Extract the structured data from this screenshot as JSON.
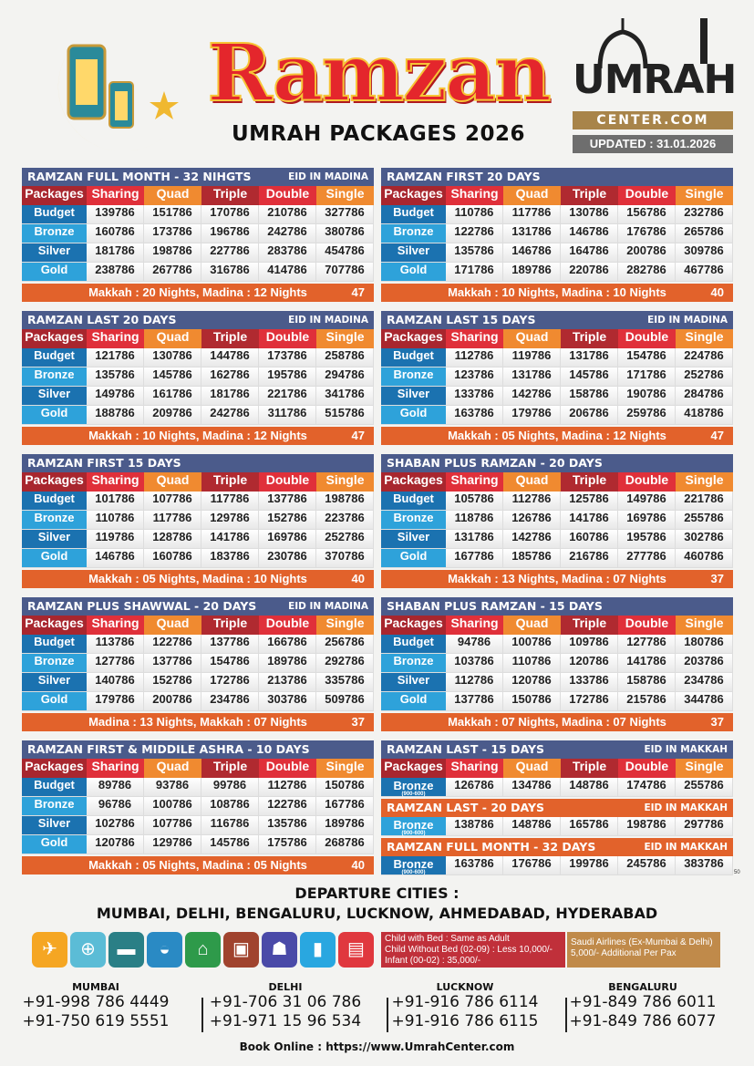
{
  "header": {
    "title": "Ramzan",
    "subtitle": "UMRAH PACKAGES 2026",
    "logo_text": "UMRAH",
    "logo_sub": "CENTER.COM",
    "updated": "UPDATED : 31.01.2026"
  },
  "columns": [
    "Packages",
    "Sharing",
    "Quad",
    "Triple",
    "Double",
    "Single"
  ],
  "header_colors": [
    "#a8262e",
    "#e0303a",
    "#f08a30",
    "#b02a30",
    "#e0303a",
    "#f08a30"
  ],
  "package_colors": {
    "Budget": "#1b72b0",
    "Bronze": "#2ea2da",
    "Silver": "#1b72b0",
    "Gold": "#2ea2da"
  },
  "tables": [
    {
      "title": "RAMZAN FULL MONTH - 32 NIHGTS",
      "eid": "EID IN MADINA",
      "rows": [
        [
          "Budget",
          "139786",
          "151786",
          "170786",
          "210786",
          "327786"
        ],
        [
          "Bronze",
          "160786",
          "173786",
          "196786",
          "242786",
          "380786"
        ],
        [
          "Silver",
          "181786",
          "198786",
          "227786",
          "283786",
          "454786"
        ],
        [
          "Gold",
          "238786",
          "267786",
          "316786",
          "414786",
          "707786"
        ]
      ],
      "footer": "Makkah : 20 Nights, Madina : 12 Nights",
      "count": "47"
    },
    {
      "title": "RAMZAN FIRST 20 DAYS",
      "eid": "",
      "rows": [
        [
          "Budget",
          "110786",
          "117786",
          "130786",
          "156786",
          "232786"
        ],
        [
          "Bronze",
          "122786",
          "131786",
          "146786",
          "176786",
          "265786"
        ],
        [
          "Silver",
          "135786",
          "146786",
          "164786",
          "200786",
          "309786"
        ],
        [
          "Gold",
          "171786",
          "189786",
          "220786",
          "282786",
          "467786"
        ]
      ],
      "footer": "Makkah : 10 Nights, Madina : 10 Nights",
      "count": "40"
    },
    {
      "title": "RAMZAN LAST 20 DAYS",
      "eid": "EID IN MADINA",
      "rows": [
        [
          "Budget",
          "121786",
          "130786",
          "144786",
          "173786",
          "258786"
        ],
        [
          "Bronze",
          "135786",
          "145786",
          "162786",
          "195786",
          "294786"
        ],
        [
          "Silver",
          "149786",
          "161786",
          "181786",
          "221786",
          "341786"
        ],
        [
          "Gold",
          "188786",
          "209786",
          "242786",
          "311786",
          "515786"
        ]
      ],
      "footer": "Makkah : 10 Nights, Madina : 12 Nights",
      "count": "47"
    },
    {
      "title": "RAMZAN LAST 15 DAYS",
      "eid": "EID IN MADINA",
      "rows": [
        [
          "Budget",
          "112786",
          "119786",
          "131786",
          "154786",
          "224786"
        ],
        [
          "Bronze",
          "123786",
          "131786",
          "145786",
          "171786",
          "252786"
        ],
        [
          "Silver",
          "133786",
          "142786",
          "158786",
          "190786",
          "284786"
        ],
        [
          "Gold",
          "163786",
          "179786",
          "206786",
          "259786",
          "418786"
        ]
      ],
      "footer": "Makkah : 05 Nights, Madina : 12 Nights",
      "count": "47"
    },
    {
      "title": "RAMZAN FIRST 15 DAYS",
      "eid": "",
      "rows": [
        [
          "Budget",
          "101786",
          "107786",
          "117786",
          "137786",
          "198786"
        ],
        [
          "Bronze",
          "110786",
          "117786",
          "129786",
          "152786",
          "223786"
        ],
        [
          "Silver",
          "119786",
          "128786",
          "141786",
          "169786",
          "252786"
        ],
        [
          "Gold",
          "146786",
          "160786",
          "183786",
          "230786",
          "370786"
        ]
      ],
      "footer": "Makkah : 05 Nights, Madina : 10 Nights",
      "count": "40"
    },
    {
      "title": "SHABAN PLUS RAMZAN - 20 DAYS",
      "eid": "",
      "rows": [
        [
          "Budget",
          "105786",
          "112786",
          "125786",
          "149786",
          "221786"
        ],
        [
          "Bronze",
          "118786",
          "126786",
          "141786",
          "169786",
          "255786"
        ],
        [
          "Silver",
          "131786",
          "142786",
          "160786",
          "195786",
          "302786"
        ],
        [
          "Gold",
          "167786",
          "185786",
          "216786",
          "277786",
          "460786"
        ]
      ],
      "footer": "Makkah : 13 Nights, Madina : 07 Nights",
      "count": "37"
    },
    {
      "title": "RAMZAN PLUS SHAWWAL - 20 DAYS",
      "eid": "EID IN MADINA",
      "rows": [
        [
          "Budget",
          "113786",
          "122786",
          "137786",
          "166786",
          "256786"
        ],
        [
          "Bronze",
          "127786",
          "137786",
          "154786",
          "189786",
          "292786"
        ],
        [
          "Silver",
          "140786",
          "152786",
          "172786",
          "213786",
          "335786"
        ],
        [
          "Gold",
          "179786",
          "200786",
          "234786",
          "303786",
          "509786"
        ]
      ],
      "footer": "Madina : 13 Nights, Makkah : 07 Nights",
      "count": "37"
    },
    {
      "title": "SHABAN PLUS RAMZAN - 15 DAYS",
      "eid": "",
      "rows": [
        [
          "Budget",
          "94786",
          "100786",
          "109786",
          "127786",
          "180786"
        ],
        [
          "Bronze",
          "103786",
          "110786",
          "120786",
          "141786",
          "203786"
        ],
        [
          "Silver",
          "112786",
          "120786",
          "133786",
          "158786",
          "234786"
        ],
        [
          "Gold",
          "137786",
          "150786",
          "172786",
          "215786",
          "344786"
        ]
      ],
      "footer": "Makkah : 07 Nights, Madina : 07 Nights",
      "count": "37"
    },
    {
      "title": "RAMZAN FIRST & MIDDILE ASHRA - 10 DAYS",
      "eid": "",
      "rows": [
        [
          "Budget",
          "89786",
          "93786",
          "99786",
          "112786",
          "150786"
        ],
        [
          "Bronze",
          "96786",
          "100786",
          "108786",
          "122786",
          "167786"
        ],
        [
          "Silver",
          "102786",
          "107786",
          "116786",
          "135786",
          "189786"
        ],
        [
          "Gold",
          "120786",
          "129786",
          "145786",
          "175786",
          "268786"
        ]
      ],
      "footer": "Makkah : 05 Nights, Madina : 05 Nights",
      "count": "40"
    }
  ],
  "makkah_tables": [
    {
      "title": "RAMZAN LAST - 15 DAYS",
      "eid": "EID IN MAKKAH",
      "row": [
        "Bronze",
        "126786",
        "134786",
        "148786",
        "174786",
        "255786"
      ],
      "note": "(900-600)"
    },
    {
      "title": "RAMZAN LAST - 20 DAYS",
      "eid": "EID IN MAKKAH",
      "row": [
        "Bronze",
        "138786",
        "148786",
        "165786",
        "198786",
        "297786"
      ],
      "note": "(900-600)"
    },
    {
      "title": "RAMZAN FULL MONTH - 32 DAYS",
      "eid": "EID IN MAKKAH",
      "row": [
        "Bronze",
        "163786",
        "176786",
        "199786",
        "245786",
        "383786"
      ],
      "note": "(900-600)"
    }
  ],
  "makkah_count": "50",
  "departure": {
    "label": "DEPARTURE CITIES :",
    "cities": "MUMBAI, DELHI, BENGALURU, LUCKNOW, AHMEDABAD, HYDERABAD"
  },
  "services": [
    {
      "icon": "airplane-icon",
      "glyph": "✈",
      "color": "#f5a623"
    },
    {
      "icon": "passport-visa-icon",
      "glyph": "⊕",
      "color": "#5bbcd6"
    },
    {
      "icon": "hotel-bed-icon",
      "glyph": "▬",
      "color": "#2a7f86"
    },
    {
      "icon": "food-cloche-icon",
      "glyph": "◒",
      "color": "#2a8ac4"
    },
    {
      "icon": "mosque-ziyarat-icon",
      "glyph": "⌂",
      "color": "#2e9a4a"
    },
    {
      "icon": "bus-icon",
      "glyph": "▣",
      "color": "#a0432e"
    },
    {
      "icon": "laundry-icon",
      "glyph": "☗",
      "color": "#4a4aa8"
    },
    {
      "icon": "zamzam-water-icon",
      "glyph": "▮",
      "color": "#29a7e0"
    },
    {
      "icon": "sim-card-icon",
      "glyph": "▤",
      "color": "#e0383e"
    }
  ],
  "child_info": [
    "Child with Bed : Same as Adult",
    "Child Without Bed (02-09) : Less 10,000/-",
    "Infant (00-02) : 35,000/-"
  ],
  "airline_info": [
    "Saudi Airlines (Ex-Mumbai & Delhi)",
    "5,000/- Additional Per Pax"
  ],
  "contacts": [
    {
      "city": "MUMBAI",
      "phones": [
        "+91-998 786 4449",
        "+91-750  619  5551"
      ]
    },
    {
      "city": "DELHI",
      "phones": [
        "+91-706 31 06 786",
        "+91-971 15 96 534"
      ]
    },
    {
      "city": "LUCKNOW",
      "phones": [
        "+91-916 786 6114",
        "+91-916 786 6115"
      ]
    },
    {
      "city": "BENGALURU",
      "phones": [
        "+91-849  786  6011",
        "+91-849 786 6077"
      ]
    }
  ],
  "book_online": "Book Online : https://www.UmrahCenter.com"
}
